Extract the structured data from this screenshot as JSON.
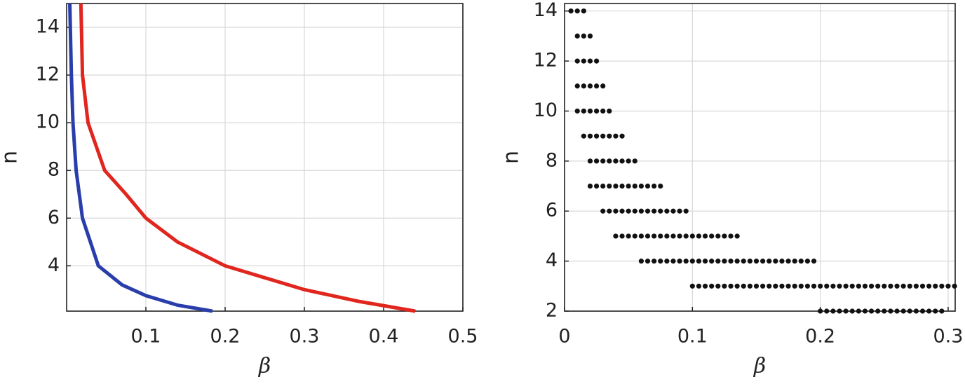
{
  "chart_data": [
    {
      "type": "line",
      "x_label": "β",
      "y_label": "n",
      "xlim": [
        0,
        0.5
      ],
      "ylim": [
        2.1,
        15
      ],
      "xticks": [
        0.1,
        0.2,
        0.3,
        0.4,
        0.5
      ],
      "yticks": [
        4,
        6,
        8,
        10,
        12,
        14
      ],
      "grid": true,
      "series": [
        {
          "color": "#2a3eab",
          "x": [
            0.004,
            0.006,
            0.008,
            0.012,
            0.02,
            0.04,
            0.07,
            0.1,
            0.14,
            0.184
          ],
          "values": [
            15,
            12,
            10,
            8,
            6,
            4,
            3.2,
            2.75,
            2.35,
            2.1
          ]
        },
        {
          "color": "#e0261e",
          "x": [
            0.018,
            0.02,
            0.027,
            0.048,
            0.075,
            0.1,
            0.14,
            0.2,
            0.3,
            0.37,
            0.44
          ],
          "values": [
            15,
            12,
            10,
            8,
            7,
            6,
            5,
            4,
            3,
            2.5,
            2.1
          ]
        }
      ]
    },
    {
      "type": "scatter",
      "x_label": "β",
      "y_label": "n",
      "xlim": [
        0,
        0.3055
      ],
      "ylim": [
        2,
        14.3
      ],
      "xticks": [
        0,
        0.1,
        0.2,
        0.3
      ],
      "yticks": [
        2,
        4,
        6,
        8,
        10,
        12,
        14
      ],
      "grid": true,
      "color": "#111111",
      "series": [
        {
          "y": 14,
          "x": [
            0.005,
            0.01,
            0.015
          ]
        },
        {
          "y": 13,
          "x": [
            0.01,
            0.015,
            0.02
          ]
        },
        {
          "y": 12,
          "x": [
            0.01,
            0.015,
            0.02,
            0.025
          ]
        },
        {
          "y": 11,
          "x": [
            0.01,
            0.015,
            0.02,
            0.025,
            0.03
          ]
        },
        {
          "y": 10,
          "x": [
            0.01,
            0.015,
            0.02,
            0.025,
            0.03,
            0.035
          ]
        },
        {
          "y": 9,
          "x": [
            0.015,
            0.02,
            0.025,
            0.03,
            0.035,
            0.04,
            0.045
          ]
        },
        {
          "y": 8,
          "x": [
            0.02,
            0.025,
            0.03,
            0.035,
            0.04,
            0.045,
            0.05,
            0.055
          ]
        },
        {
          "y": 7,
          "x": [
            0.02,
            0.025,
            0.03,
            0.035,
            0.04,
            0.045,
            0.05,
            0.055,
            0.06,
            0.065,
            0.07,
            0.075
          ]
        },
        {
          "y": 6,
          "x": [
            0.03,
            0.035,
            0.04,
            0.045,
            0.05,
            0.055,
            0.06,
            0.065,
            0.07,
            0.075,
            0.08,
            0.085,
            0.09,
            0.095
          ]
        },
        {
          "y": 5,
          "x": [
            0.04,
            0.045,
            0.05,
            0.055,
            0.06,
            0.065,
            0.07,
            0.075,
            0.08,
            0.085,
            0.09,
            0.095,
            0.1,
            0.105,
            0.11,
            0.115,
            0.12,
            0.125,
            0.13,
            0.135
          ]
        },
        {
          "y": 4,
          "x": [
            0.06,
            0.065,
            0.07,
            0.075,
            0.08,
            0.085,
            0.09,
            0.095,
            0.1,
            0.105,
            0.11,
            0.115,
            0.12,
            0.125,
            0.13,
            0.135,
            0.14,
            0.145,
            0.15,
            0.155,
            0.16,
            0.165,
            0.17,
            0.175,
            0.18,
            0.185,
            0.19,
            0.195
          ]
        },
        {
          "y": 3,
          "x": [
            0.1,
            0.105,
            0.11,
            0.115,
            0.12,
            0.125,
            0.13,
            0.135,
            0.14,
            0.145,
            0.15,
            0.155,
            0.16,
            0.165,
            0.17,
            0.175,
            0.18,
            0.185,
            0.19,
            0.195,
            0.2,
            0.205,
            0.21,
            0.215,
            0.22,
            0.225,
            0.23,
            0.235,
            0.24,
            0.245,
            0.25,
            0.255,
            0.26,
            0.265,
            0.27,
            0.275,
            0.28,
            0.285,
            0.29,
            0.295,
            0.3,
            0.305
          ]
        },
        {
          "y": 2,
          "x": [
            0.2,
            0.205,
            0.21,
            0.215,
            0.22,
            0.225,
            0.23,
            0.235,
            0.24,
            0.245,
            0.25,
            0.255,
            0.26,
            0.265,
            0.27,
            0.275,
            0.28,
            0.285,
            0.29,
            0.295
          ]
        }
      ]
    }
  ]
}
